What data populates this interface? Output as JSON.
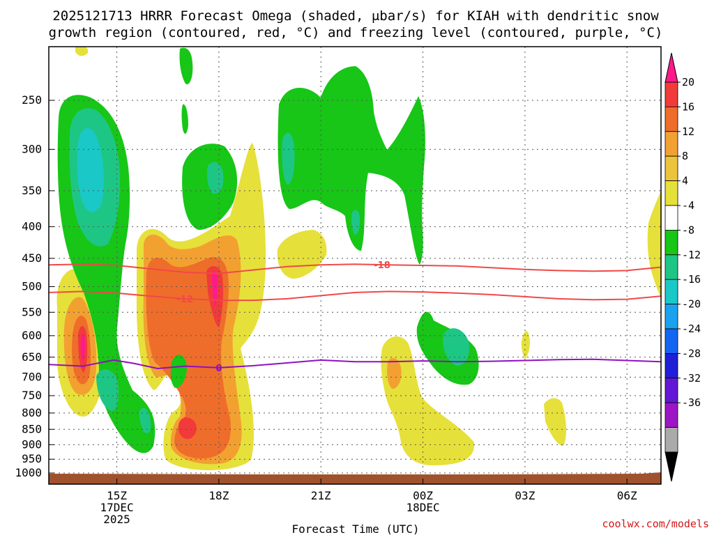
{
  "chart_data": {
    "type": "contour",
    "title_line1": "2025121713 HRRR Forecast Omega (shaded, μbar/s) for KIAH with dendritic snow",
    "title_line2": "growth region (contoured, red, °C) and freezing level (contoured, purple, °C)",
    "xlabel": "Forecast Time (UTC)",
    "credit": "coolwx.com/models",
    "x_range_hours": [
      13.0,
      31.0
    ],
    "x_ticks": [
      {
        "hour": 15,
        "lines": [
          "15Z",
          "17DEC",
          "2025"
        ]
      },
      {
        "hour": 18,
        "lines": [
          "18Z"
        ]
      },
      {
        "hour": 21,
        "lines": [
          "21Z"
        ]
      },
      {
        "hour": 24,
        "lines": [
          "00Z",
          "18DEC"
        ]
      },
      {
        "hour": 27,
        "lines": [
          "03Z"
        ]
      },
      {
        "hour": 30,
        "lines": [
          "06Z"
        ]
      }
    ],
    "y_ticks_hpa": [
      "250",
      "300",
      "350",
      "400",
      "450",
      "500",
      "550",
      "600",
      "650",
      "700",
      "750",
      "800",
      "850",
      "900",
      "950",
      "1000"
    ],
    "colorbar": {
      "labels": [
        "20",
        "16",
        "12",
        "8",
        "4",
        "-4",
        "-8",
        "-12",
        "-16",
        "-20",
        "-24",
        "-28",
        "-32",
        "-36"
      ],
      "colors": [
        "#ff1a8c",
        "#f23a3a",
        "#ef6d2a",
        "#f2a131",
        "#ecc43c",
        "#e6e03a",
        "#ffffff",
        "#17c617",
        "#1ec685",
        "#1ac8c8",
        "#1ba2ee",
        "#1466f2",
        "#1f1fd6",
        "#6218d6",
        "#9d16c6",
        "#aaaaaa",
        "#000000"
      ]
    },
    "series": [
      {
        "name": "-18 C isotherm",
        "label": "-18",
        "color": "#f04848",
        "points": [
          [
            13.0,
            461
          ],
          [
            14.0,
            460
          ],
          [
            15.0,
            462
          ],
          [
            16.0,
            468
          ],
          [
            17.0,
            474
          ],
          [
            18.0,
            476
          ],
          [
            19.0,
            470
          ],
          [
            20.0,
            464
          ],
          [
            21.0,
            461
          ],
          [
            22.0,
            460
          ],
          [
            23.0,
            461
          ],
          [
            24.0,
            462
          ],
          [
            25.0,
            463
          ],
          [
            26.0,
            466
          ],
          [
            27.0,
            469
          ],
          [
            28.0,
            471
          ],
          [
            29.0,
            472
          ],
          [
            30.0,
            471
          ],
          [
            31.0,
            465
          ]
        ],
        "label_at_hour": 22.8
      },
      {
        "name": "-12 C isotherm",
        "label": "-12",
        "color": "#f04848",
        "points": [
          [
            13.0,
            511
          ],
          [
            14.0,
            509
          ],
          [
            15.0,
            512
          ],
          [
            16.0,
            518
          ],
          [
            17.0,
            523
          ],
          [
            18.0,
            526
          ],
          [
            19.0,
            526
          ],
          [
            20.0,
            523
          ],
          [
            21.0,
            517
          ],
          [
            22.0,
            511
          ],
          [
            23.0,
            509
          ],
          [
            24.0,
            510
          ],
          [
            25.0,
            512
          ],
          [
            26.0,
            515
          ],
          [
            27.0,
            519
          ],
          [
            28.0,
            523
          ],
          [
            29.0,
            525
          ],
          [
            30.0,
            524
          ],
          [
            31.0,
            518
          ]
        ],
        "label_at_hour": 17.0
      },
      {
        "name": "0 C isotherm (freezing level)",
        "label": "0",
        "color": "#9010c0",
        "points": [
          [
            13.0,
            668
          ],
          [
            14.0,
            672
          ],
          [
            14.9,
            657
          ],
          [
            15.5,
            665
          ],
          [
            16.2,
            678
          ],
          [
            17.0,
            672
          ],
          [
            18.0,
            676
          ],
          [
            19.0,
            671
          ],
          [
            20.0,
            664
          ],
          [
            21.0,
            657
          ],
          [
            22.0,
            661
          ],
          [
            23.0,
            661
          ],
          [
            24.0,
            659
          ],
          [
            25.0,
            661
          ],
          [
            26.0,
            660
          ],
          [
            27.0,
            658
          ],
          [
            28.0,
            656
          ],
          [
            29.0,
            655
          ],
          [
            30.0,
            658
          ],
          [
            31.0,
            661
          ]
        ],
        "label_at_hour": 18.0
      }
    ]
  }
}
